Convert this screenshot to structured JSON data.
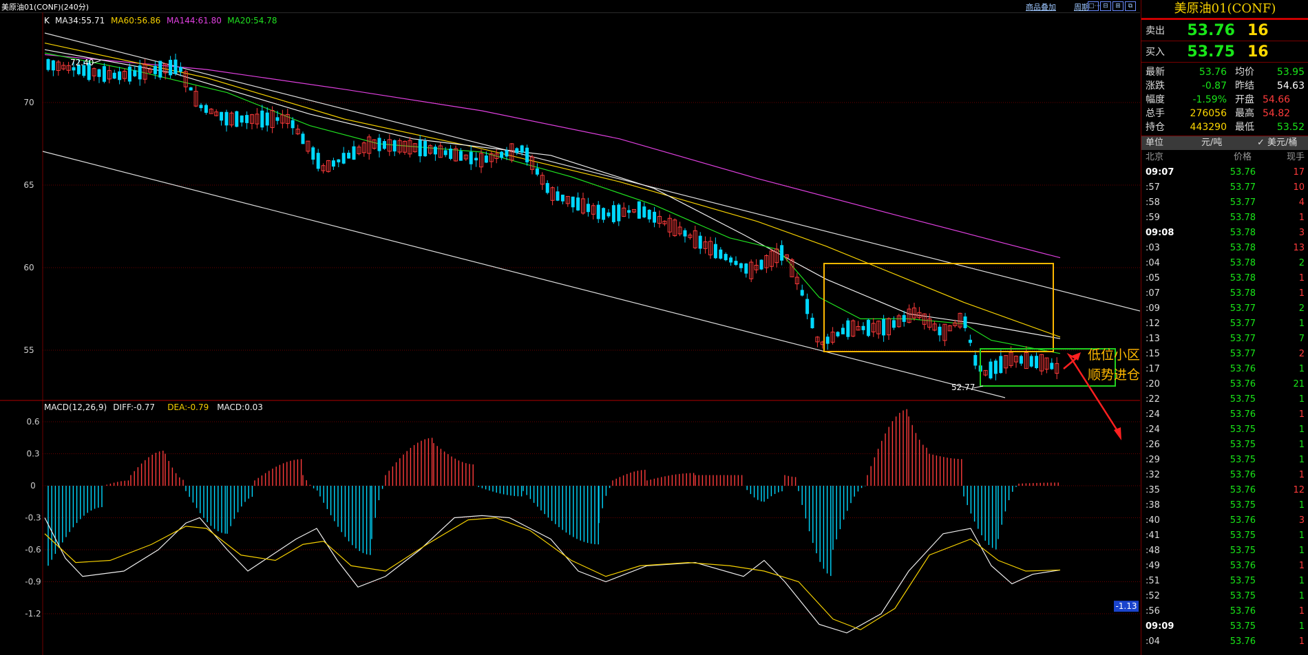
{
  "window": {
    "title": "美原油01(CONF)(240分)",
    "overlay_link": "商品叠加",
    "period_link": "周期",
    "window_buttons": [
      "□⋯",
      "⊟",
      "⊞",
      "⧉"
    ]
  },
  "main_chart": {
    "label_k": "K",
    "ma_legend": [
      {
        "text": "MA34:55.71",
        "color": "#f0f0f0"
      },
      {
        "text": "MA60:56.86",
        "color": "#f5d000"
      },
      {
        "text": "MA144:61.80",
        "color": "#e040e0"
      },
      {
        "text": "MA20:54.78",
        "color": "#20e020"
      }
    ],
    "y_ticks": [
      "70",
      "65",
      "60",
      "55"
    ],
    "high_label": "72.40",
    "low_label": "52.77",
    "annotation_line1": "低位小区间盘整，后市放量突破",
    "annotation_line2": "顺势进仓"
  },
  "macd_chart": {
    "legend": [
      {
        "text": "MACD(12,26,9)",
        "color": "#f0f0f0"
      },
      {
        "text": "DIFF:-0.77",
        "color": "#f0f0f0"
      },
      {
        "text": "DEA:-0.79",
        "color": "#f5d000"
      },
      {
        "text": "MACD:0.03",
        "color": "#f0f0f0"
      }
    ],
    "y_ticks": [
      "0.6",
      "0.3",
      "0",
      "-0.3",
      "-0.6",
      "-0.9",
      "-1.2"
    ],
    "cursor_value": "-1.13"
  },
  "quote": {
    "title": "美原油01(CONF)",
    "ask_label": "卖出",
    "ask_price": "53.76",
    "ask_vol": "16",
    "bid_label": "买入",
    "bid_price": "53.75",
    "bid_vol": "16",
    "rows": [
      {
        "l1": "最新",
        "v1": "53.76",
        "c1": "g",
        "l2": "均价",
        "v2": "53.95",
        "c2": "g"
      },
      {
        "l1": "涨跌",
        "v1": "-0.87",
        "c1": "g",
        "l2": "昨结",
        "v2": "54.63",
        "c2": "w"
      },
      {
        "l1": "幅度",
        "v1": "-1.59%",
        "c1": "g",
        "l2": "开盘",
        "v2": "54.66",
        "c2": "r"
      },
      {
        "l1": "总手",
        "v1": "276056",
        "c1": "y",
        "l2": "最高",
        "v2": "54.82",
        "c2": "r"
      },
      {
        "l1": "持仓",
        "v1": "443290",
        "c1": "y",
        "l2": "最低",
        "v2": "53.52",
        "c2": "g"
      }
    ],
    "unit_label": "单位",
    "unit_cny": "元/吨",
    "unit_usd": "✓ 美元/桶",
    "tick_headers": [
      "北京",
      "价格",
      "现手"
    ]
  },
  "ticks": [
    {
      "t": "09:07",
      "p": "53.76",
      "v": "17",
      "vc": "r",
      "major": true
    },
    {
      "t": ":57",
      "p": "53.77",
      "v": "10",
      "vc": "r"
    },
    {
      "t": ":58",
      "p": "53.77",
      "v": "4",
      "vc": "r"
    },
    {
      "t": ":59",
      "p": "53.78",
      "v": "1",
      "vc": "r"
    },
    {
      "t": "09:08",
      "p": "53.78",
      "v": "3",
      "vc": "r",
      "major": true
    },
    {
      "t": ":03",
      "p": "53.78",
      "v": "13",
      "vc": "r"
    },
    {
      "t": ":04",
      "p": "53.78",
      "v": "2",
      "vc": "g"
    },
    {
      "t": ":05",
      "p": "53.78",
      "v": "1",
      "vc": "r"
    },
    {
      "t": ":07",
      "p": "53.78",
      "v": "1",
      "vc": "r"
    },
    {
      "t": ":09",
      "p": "53.77",
      "v": "2",
      "vc": "g"
    },
    {
      "t": ":12",
      "p": "53.77",
      "v": "1",
      "vc": "g"
    },
    {
      "t": ":13",
      "p": "53.77",
      "v": "7",
      "vc": "g"
    },
    {
      "t": ":15",
      "p": "53.77",
      "v": "2",
      "vc": "r"
    },
    {
      "t": ":17",
      "p": "53.76",
      "v": "1",
      "vc": "g"
    },
    {
      "t": ":20",
      "p": "53.76",
      "v": "21",
      "vc": "g"
    },
    {
      "t": ":22",
      "p": "53.75",
      "v": "1",
      "vc": "g"
    },
    {
      "t": ":24",
      "p": "53.76",
      "v": "1",
      "vc": "r"
    },
    {
      "t": ":24",
      "p": "53.75",
      "v": "1",
      "vc": "g"
    },
    {
      "t": ":26",
      "p": "53.75",
      "v": "1",
      "vc": "g"
    },
    {
      "t": ":29",
      "p": "53.75",
      "v": "1",
      "vc": "g"
    },
    {
      "t": ":32",
      "p": "53.76",
      "v": "1",
      "vc": "r"
    },
    {
      "t": ":35",
      "p": "53.76",
      "v": "12",
      "vc": "r"
    },
    {
      "t": ":38",
      "p": "53.75",
      "v": "1",
      "vc": "g"
    },
    {
      "t": ":40",
      "p": "53.76",
      "v": "3",
      "vc": "r"
    },
    {
      "t": ":41",
      "p": "53.75",
      "v": "1",
      "vc": "g"
    },
    {
      "t": ":48",
      "p": "53.75",
      "v": "1",
      "vc": "g"
    },
    {
      "t": ":49",
      "p": "53.76",
      "v": "1",
      "vc": "r"
    },
    {
      "t": ":51",
      "p": "53.75",
      "v": "1",
      "vc": "g"
    },
    {
      "t": ":52",
      "p": "53.75",
      "v": "1",
      "vc": "g"
    },
    {
      "t": ":56",
      "p": "53.76",
      "v": "1",
      "vc": "r"
    },
    {
      "t": "09:09",
      "p": "53.75",
      "v": "1",
      "vc": "g",
      "major": true
    },
    {
      "t": ":04",
      "p": "53.76",
      "v": "1",
      "vc": "r"
    }
  ],
  "colors": {
    "up": "#ff3b3b",
    "down": "#00d8ff",
    "ma34": "#f0f0f0",
    "ma60": "#f5d000",
    "ma144": "#e040e0",
    "ma20": "#20e020",
    "grid": "#6e0000",
    "box_yellow": "#ffb800",
    "box_green": "#20d020",
    "arrow": "#ff2020",
    "annotation": "#ffb800"
  }
}
